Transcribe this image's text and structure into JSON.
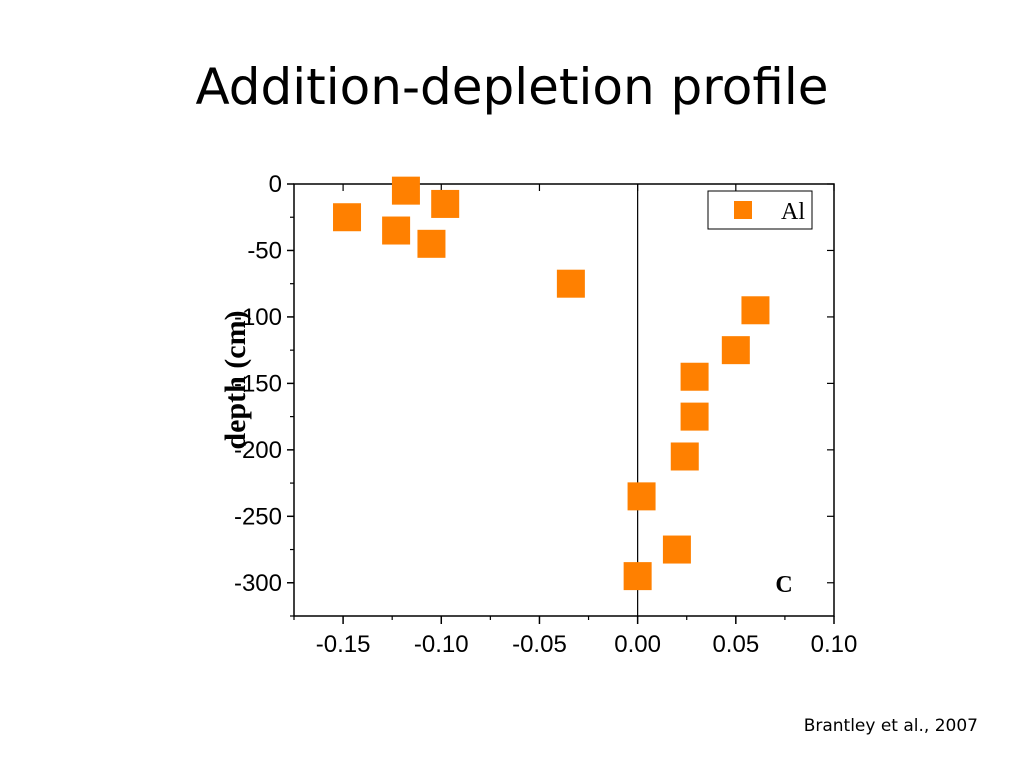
{
  "slide": {
    "title": "Addition-depletion profile",
    "citation": "Brantley et al., 2007"
  },
  "chart_data": {
    "type": "scatter",
    "title": "",
    "xlabel": "",
    "ylabel": "depth (cm)",
    "panel_label": "C",
    "xlim": [
      -0.175,
      0.1
    ],
    "ylim": [
      -325,
      0
    ],
    "x_ticks": [
      -0.15,
      -0.1,
      -0.05,
      0.0,
      0.05,
      0.1
    ],
    "x_tick_labels": [
      "-0.15",
      "-0.10",
      "-0.05",
      "0.00",
      "0.05",
      "0.10"
    ],
    "y_ticks": [
      0,
      -50,
      -100,
      -150,
      -200,
      -250,
      -300
    ],
    "y_tick_labels": [
      "0",
      "-50",
      "-100",
      "-150",
      "-200",
      "-250",
      "-300"
    ],
    "grid": false,
    "reference_line_x": 0,
    "legend": {
      "position": "top-right",
      "entries": [
        "Al"
      ]
    },
    "marker_color": "#ff8000",
    "series": [
      {
        "name": "Al",
        "points": [
          {
            "x": -0.118,
            "y": -5
          },
          {
            "x": -0.098,
            "y": -15
          },
          {
            "x": -0.148,
            "y": -25
          },
          {
            "x": -0.123,
            "y": -35
          },
          {
            "x": -0.105,
            "y": -45
          },
          {
            "x": -0.034,
            "y": -75
          },
          {
            "x": 0.06,
            "y": -95
          },
          {
            "x": 0.05,
            "y": -125
          },
          {
            "x": 0.029,
            "y": -145
          },
          {
            "x": 0.029,
            "y": -175
          },
          {
            "x": 0.024,
            "y": -205
          },
          {
            "x": 0.002,
            "y": -235
          },
          {
            "x": 0.02,
            "y": -275
          },
          {
            "x": 0.0,
            "y": -295
          }
        ]
      }
    ]
  }
}
